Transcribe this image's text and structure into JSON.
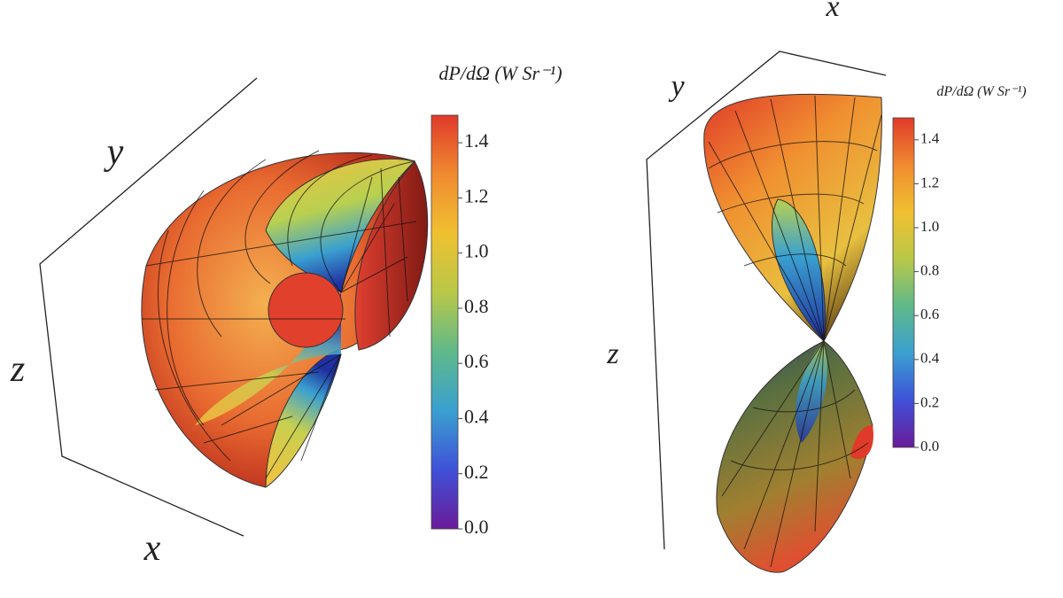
{
  "chart_data": [
    {
      "type": "surface3d",
      "x_label": "x",
      "y_label": "y",
      "z_label": "z",
      "colorbar_label": "dP/dΩ (W Sr⁻¹)",
      "clim": [
        0,
        1.5
      ],
      "cticks": [
        {
          "value": 0,
          "label": "0.0"
        },
        0.2,
        0.4,
        0.6,
        0.8,
        {
          "value": 1,
          "label": "1.0"
        },
        1.2,
        1.4
      ],
      "colormap": [
        "#6a1b9a",
        "#3f51d8",
        "#3aa0d0",
        "#5fb98a",
        "#b8c848",
        "#f0c030",
        "#f08a30",
        "#e03a2a"
      ]
    },
    {
      "type": "surface3d",
      "x_label": "x",
      "y_label": "y",
      "z_label": "z",
      "colorbar_label": "dP/dΩ (W Sr⁻¹)",
      "clim": [
        0,
        1.5
      ],
      "cticks": [
        {
          "value": 0,
          "label": "0.0"
        },
        0.2,
        0.4,
        0.6,
        0.8,
        {
          "value": 1,
          "label": "1.0"
        },
        1.2,
        1.4
      ],
      "colormap": [
        "#6a1b9a",
        "#3f51d8",
        "#3aa0d0",
        "#5fb98a",
        "#b8c848",
        "#f0c030",
        "#f08a30",
        "#e03a2a"
      ]
    }
  ]
}
